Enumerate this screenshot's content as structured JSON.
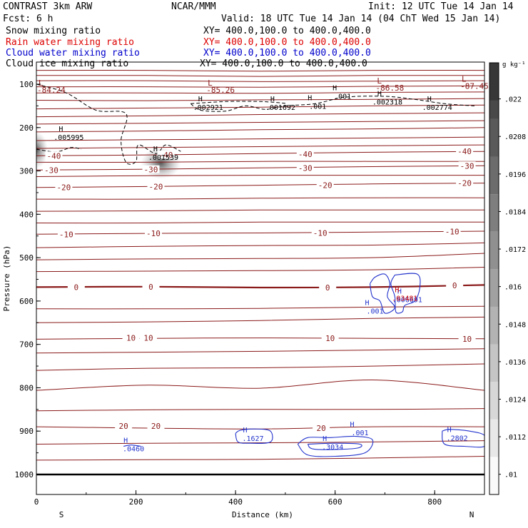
{
  "header": {
    "title": "CONTRAST  3km ARW",
    "center": "NCAR/MMM",
    "init": "Init: 12 UTC Tue 14 Jan 14",
    "fcst": "Fcst:    6 h",
    "valid": "Valid: 18 UTC Tue 14 Jan 14 (04 ChT Wed 15 Jan 14)",
    "fields": [
      {
        "name": "Snow mixing ratio",
        "xy": "XY= 400.0,100.0 to 400.0,400.0",
        "color": "#000000"
      },
      {
        "name": "Rain water mixing ratio",
        "xy": "XY= 400.0,100.0 to 400.0,400.0",
        "color": "#dd0000"
      },
      {
        "name": "Cloud water mixing ratio",
        "xy": "XY= 400.0,100.0 to 400.0,400.0",
        "color": "#0000cc"
      },
      {
        "name": "Cloud ice mixing ratio",
        "xy": "XY= 400.0,100.0 to 400.0,400.0",
        "color": "#000000"
      }
    ]
  },
  "colors": {
    "temp": "#8b1a1a",
    "cloud_water": "#2233cc",
    "rain": "#cc0000",
    "ice": "#000000",
    "ground": "#000000"
  },
  "chart_data": {
    "type": "contour",
    "xlabel": "Distance (km)",
    "ylabel": "Pressure (hPa)",
    "xlim": [
      0,
      900
    ],
    "ylim": [
      1050,
      50
    ],
    "xticks": [
      0,
      200,
      400,
      600,
      800
    ],
    "yticks": [
      100,
      200,
      300,
      400,
      500,
      600,
      700,
      800,
      900,
      1000
    ],
    "end_labels": {
      "left": "S",
      "right": "N"
    },
    "colorbar": {
      "unit": "g kg⁻¹",
      "ticks": [
        ".01",
        ".0112",
        ".0124",
        ".0136",
        ".0148",
        ".016",
        ".0172",
        ".0184",
        ".0196",
        ".0208",
        ".022"
      ]
    },
    "temperature_isotherms": [
      {
        "p": [
          1000,
          1000,
          1000,
          1000,
          1000
        ]
      },
      {
        "p": [
          967,
          966,
          965,
          962,
          958
        ]
      },
      {
        "p": [
          930,
          928,
          927,
          925,
          922
        ]
      },
      {
        "label": "20",
        "p": [
          890,
          893,
          895,
          890,
          890
        ],
        "label_pos": [
          [
            175,
            888
          ],
          [
            240,
            888
          ],
          [
            572,
            893
          ]
        ]
      },
      {
        "p": [
          853,
          851,
          850,
          850,
          848
        ]
      },
      {
        "p": [
          806,
          794,
          801,
          782,
          806
        ]
      },
      {
        "p": [
          760,
          755,
          754,
          750,
          745
        ]
      },
      {
        "p": [
          720,
          718,
          716,
          713,
          710
        ]
      },
      {
        "label": "10",
        "p": [
          688,
          686,
          685,
          686,
          687
        ],
        "label_pos": [
          [
            190,
            685
          ],
          [
            225,
            685
          ],
          [
            590,
            686
          ],
          [
            865,
            687
          ]
        ]
      },
      {
        "p": [
          650,
          648,
          645,
          640,
          637
        ]
      },
      {
        "p": [
          618,
          618,
          617,
          614,
          612
        ]
      },
      {
        "label": "0",
        "p": [
          568,
          567,
          569,
          568,
          563
        ],
        "label_pos": [
          [
            80,
            568
          ],
          [
            230,
            567
          ],
          [
            585,
            569
          ],
          [
            840,
            564
          ]
        ],
        "bold": true
      },
      {
        "p": [
          532,
          531,
          530,
          528,
          522
        ]
      },
      {
        "p": [
          505,
          503,
          502,
          500,
          490
        ]
      },
      {
        "p": [
          477,
          474,
          472,
          471,
          466
        ]
      },
      {
        "label": "-10",
        "p": [
          446,
          444,
          443,
          441,
          439
        ],
        "label_pos": [
          [
            60,
            446
          ],
          [
            235,
            444
          ],
          [
            570,
            443
          ],
          [
            835,
            440
          ]
        ]
      },
      {
        "p": [
          420,
          420,
          418,
          418,
          418
        ]
      },
      {
        "p": [
          393,
          392,
          390,
          390,
          390
        ]
      },
      {
        "p": [
          365,
          365,
          363,
          362,
          362
        ]
      },
      {
        "label": "-20",
        "p": [
          338,
          336,
          333,
          330,
          328
        ],
        "label_pos": [
          [
            55,
            338
          ],
          [
            240,
            336
          ],
          [
            580,
            333
          ],
          [
            860,
            328
          ]
        ]
      },
      {
        "p": [
          313,
          311,
          310,
          310,
          310
        ]
      },
      {
        "label": "-30",
        "p": [
          298,
          296,
          293,
          290,
          288
        ],
        "label_pos": [
          [
            30,
            298
          ],
          [
            230,
            297
          ],
          [
            540,
            293
          ],
          [
            865,
            288
          ]
        ]
      },
      {
        "p": [
          280,
          280,
          278,
          278,
          278
        ]
      },
      {
        "label": "-40",
        "p": [
          265,
          263,
          260,
          257,
          255
        ],
        "label_pos": [
          [
            35,
            265
          ],
          [
            260,
            263
          ],
          [
            540,
            261
          ],
          [
            860,
            255
          ]
        ]
      },
      {
        "p": [
          248,
          246,
          244,
          242,
          240
        ]
      },
      {
        "p": [
          230,
          228,
          226,
          224,
          222
        ]
      },
      {
        "p": [
          210,
          208,
          205,
          203,
          200
        ]
      },
      {
        "p": [
          192,
          190,
          188,
          186,
          184
        ]
      },
      {
        "p": [
          175,
          173,
          170,
          168,
          166
        ]
      },
      {
        "p": [
          157,
          155,
          153,
          150,
          148
        ]
      },
      {
        "p": [
          137,
          138,
          136,
          135,
          133
        ]
      },
      {
        "p": [
          120,
          120,
          121,
          119,
          118
        ]
      },
      {
        "p": [
          106,
          106,
          107,
          105,
          104
        ]
      },
      {
        "p": [
          92,
          92,
          94,
          93,
          92
        ]
      },
      {
        "p": [
          80,
          80,
          82,
          80,
          80
        ]
      },
      {
        "p": [
          68,
          68,
          70,
          68,
          68
        ]
      }
    ],
    "temp_x": [
      0,
      225,
      450,
      675,
      900
    ],
    "temperature_labels_extra": [
      {
        "text": "-84.24",
        "x": 30,
        "p": 113,
        "L": true
      },
      {
        "text": "-85.26",
        "x": 370,
        "p": 113,
        "L": true
      },
      {
        "text": "-86.58",
        "x": 710,
        "p": 108,
        "L": true
      },
      {
        "text": "-87.45",
        "x": 880,
        "p": 104,
        "L": true
      }
    ],
    "maxima_labels": [
      {
        "text": ".005995",
        "x": 65,
        "p": 222,
        "color": "#000000"
      },
      {
        "text": ".001539",
        "x": 255,
        "p": 268,
        "color": "#000000"
      },
      {
        "text": ".002921",
        "x": 345,
        "p": 153,
        "color": "#000000"
      },
      {
        "text": ".001692",
        "x": 490,
        "p": 153,
        "color": "#000000"
      },
      {
        "text": ".001",
        "x": 565,
        "p": 150,
        "color": "#000000"
      },
      {
        "text": ".001",
        "x": 615,
        "p": 127,
        "color": "#000000"
      },
      {
        "text": ".002318",
        "x": 705,
        "p": 140,
        "color": "#000000"
      },
      {
        "text": ".002774",
        "x": 805,
        "p": 153,
        "color": "#000000"
      },
      {
        "text": ".001",
        "x": 680,
        "p": 622,
        "color": "#2233cc"
      },
      {
        "text": ".006691",
        "x": 745,
        "p": 596,
        "color": "#2233cc"
      },
      {
        "text": ".03481",
        "x": 740,
        "p": 593,
        "color": "#cc0000"
      },
      {
        "text": ".0460",
        "x": 195,
        "p": 940,
        "color": "#2233cc"
      },
      {
        "text": ".1627",
        "x": 435,
        "p": 916,
        "color": "#2233cc"
      },
      {
        "text": ".3034",
        "x": 595,
        "p": 936,
        "color": "#2233cc"
      },
      {
        "text": ".001",
        "x": 650,
        "p": 903,
        "color": "#2233cc"
      },
      {
        "text": ".2802",
        "x": 845,
        "p": 915,
        "color": "#2233cc"
      }
    ]
  }
}
